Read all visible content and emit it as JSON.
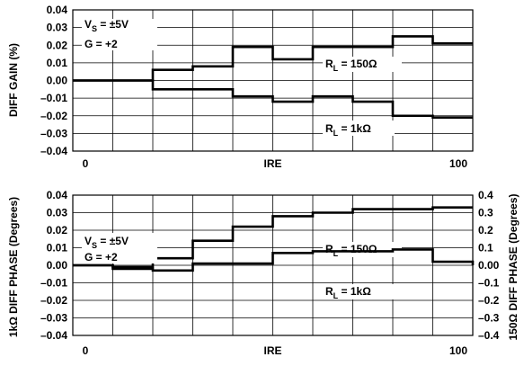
{
  "chart_data": [
    {
      "type": "line",
      "ylabel": "DIFF GAIN (%)",
      "xlabel": "IRE",
      "x_ticks": [
        "0",
        "100"
      ],
      "ylim": [
        -0.04,
        0.04
      ],
      "y_ticks": [
        "0.04",
        "0.03",
        "0.02",
        "0.01",
        "0.00",
        "–0.01",
        "–0.02",
        "–0.03",
        "–0.04"
      ],
      "grid": true,
      "conditions": {
        "vs": "V",
        "vs_sub": "S",
        "vs_value": " = ±5V",
        "gain": "G = +2"
      },
      "series": [
        {
          "name": "RL = 150Ω",
          "label": {
            "prefix": "R",
            "sub": "L",
            "value": " = 150Ω"
          },
          "x": [
            0,
            10,
            20,
            30,
            40,
            50,
            60,
            70,
            80,
            90,
            100
          ],
          "values": [
            0.0,
            0.0,
            0.006,
            0.008,
            0.019,
            0.012,
            0.019,
            0.019,
            0.025,
            0.021,
            0.021
          ]
        },
        {
          "name": "RL = 1kΩ",
          "label": {
            "prefix": "R",
            "sub": "L",
            "value": " = 1kΩ"
          },
          "x": [
            0,
            10,
            20,
            30,
            40,
            50,
            60,
            70,
            80,
            90,
            100
          ],
          "values": [
            0.0,
            0.0,
            -0.005,
            -0.005,
            -0.009,
            -0.012,
            -0.009,
            -0.012,
            -0.02,
            -0.021,
            -0.021
          ]
        }
      ]
    },
    {
      "type": "line",
      "ylabel": "1kΩ DIFF PHASE (Degrees)",
      "y2label": "150Ω DIFF PHASE (Degrees)",
      "xlabel": "IRE",
      "x_ticks": [
        "0",
        "100"
      ],
      "ylim": [
        -0.04,
        0.04
      ],
      "y_ticks": [
        "0.04",
        "0.03",
        "0.02",
        "0.01",
        "0.00",
        "–0.01",
        "–0.02",
        "–0.03",
        "–0.04"
      ],
      "y2lim": [
        -0.4,
        0.4
      ],
      "y2_ticks": [
        "0.4",
        "0.3",
        "0.2",
        "0.1",
        "0.00",
        "–0.1",
        "–0.2",
        "–0.3",
        "–0.4"
      ],
      "grid": true,
      "conditions": {
        "vs": "V",
        "vs_sub": "S",
        "vs_value": " = ±5V",
        "gain": "G = +2"
      },
      "series": [
        {
          "name": "RL = 150Ω",
          "axis": "right",
          "label": {
            "prefix": "R",
            "sub": "L",
            "value": " = 150Ω"
          },
          "x": [
            0,
            10,
            20,
            30,
            40,
            50,
            60,
            70,
            80,
            90,
            100
          ],
          "values": [
            0.0,
            -0.01,
            0.04,
            0.14,
            0.22,
            0.28,
            0.3,
            0.32,
            0.32,
            0.33,
            0.33
          ]
        },
        {
          "name": "RL = 1kΩ",
          "axis": "left",
          "label": {
            "prefix": "R",
            "sub": "L",
            "value": " = 1kΩ"
          },
          "x": [
            0,
            10,
            20,
            30,
            40,
            50,
            60,
            70,
            80,
            90,
            100
          ],
          "values": [
            0.0,
            -0.002,
            -0.003,
            0.001,
            0.001,
            0.007,
            0.008,
            0.008,
            0.009,
            0.002,
            0.0
          ]
        }
      ]
    }
  ]
}
